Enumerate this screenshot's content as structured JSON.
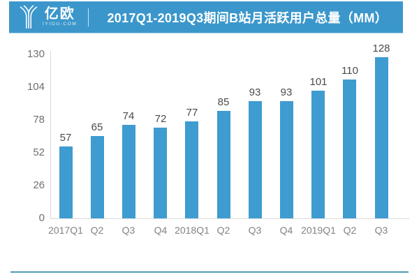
{
  "header": {
    "logo": {
      "brand": "亿欧",
      "domain": "IYIOU-COM",
      "icon": "iyiou-y-logo"
    },
    "title": "2017Q1-2019Q3期间B站月活跃用户总量（MM）"
  },
  "colors": {
    "header_bg": "#3B97CB",
    "bar": "#3E9CD0",
    "axis_line": "#D9D9D9",
    "tick_label": "#6F6F6F",
    "value_label": "#4A4A4A",
    "x_label": "#828282",
    "footer_line": "#4E9CB2"
  },
  "chart_data": {
    "type": "bar",
    "title": "2017Q1-2019Q3期间B站月活跃用户总量（MM）",
    "categories": [
      "2017Q1",
      "Q2",
      "Q3",
      "Q4",
      "2018Q1",
      "Q2",
      "Q3",
      "Q4",
      "2019Q1",
      "Q2",
      "Q3"
    ],
    "values": [
      57,
      65,
      74,
      72,
      77,
      85,
      93,
      93,
      101,
      110,
      128
    ],
    "yticks": [
      0,
      26,
      52,
      78,
      104,
      130
    ],
    "ylim": [
      0,
      130
    ],
    "xlabel": "",
    "ylabel": "",
    "unit": "MM",
    "grid": false,
    "legend": "none",
    "bar_color": "#3E9CD0"
  }
}
